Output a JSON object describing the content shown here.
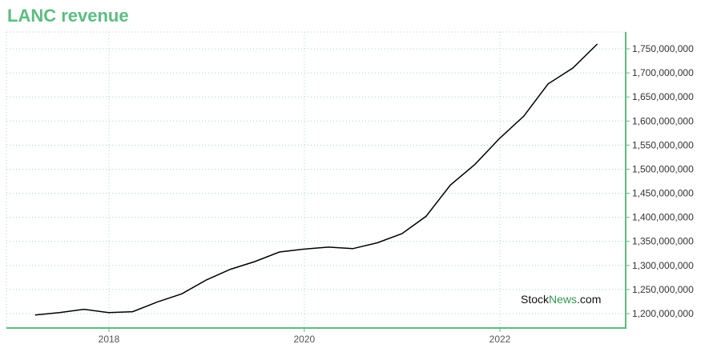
{
  "chart_data": {
    "type": "line",
    "title": "LANC revenue",
    "xlabel": "",
    "ylabel": "",
    "x": [
      "2017-03-31",
      "2017-06-30",
      "2017-09-30",
      "2017-12-31",
      "2018-03-31",
      "2018-06-30",
      "2018-09-30",
      "2018-12-31",
      "2019-03-31",
      "2019-06-30",
      "2019-09-30",
      "2019-12-31",
      "2020-03-31",
      "2020-06-30",
      "2020-09-30",
      "2020-12-31",
      "2021-03-31",
      "2021-06-30",
      "2021-09-30",
      "2021-12-31",
      "2022-03-31",
      "2022-06-30",
      "2022-09-30",
      "2022-12-31"
    ],
    "values": [
      1197000000,
      1202000000,
      1209000000,
      1202000000,
      1204000000,
      1224000000,
      1241000000,
      1270000000,
      1292000000,
      1308000000,
      1328000000,
      1334000000,
      1338000000,
      1335000000,
      1347000000,
      1366000000,
      1402000000,
      1467000000,
      1510000000,
      1564000000,
      1610000000,
      1677000000,
      1710000000,
      1760000000
    ],
    "x_ticks": [
      "2018",
      "2020",
      "2022"
    ],
    "y_ticks": [
      "1,200,000,000",
      "1,250,000,000",
      "1,300,000,000",
      "1,350,000,000",
      "1,400,000,000",
      "1,450,000,000",
      "1,500,000,000",
      "1,550,000,000",
      "1,600,000,000",
      "1,650,000,000",
      "1,700,000,000",
      "1,750,000,000"
    ],
    "ylim": [
      1200000000,
      1750000000
    ],
    "grid": true,
    "line_color": "#000000",
    "axis_color": "#5cbd80",
    "grid_color": "#a8d8c0"
  },
  "watermark": {
    "part1": "Stock",
    "part2": "News",
    "part3": ".com"
  }
}
